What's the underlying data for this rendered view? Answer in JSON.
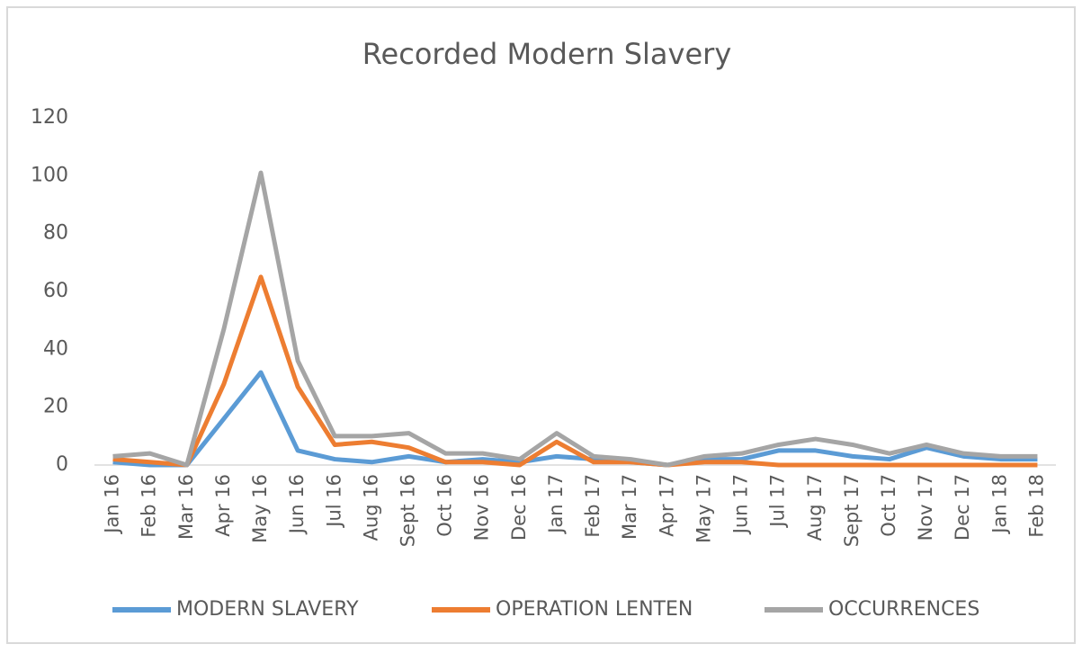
{
  "chart_data": {
    "type": "line",
    "title": "Recorded Modern Slavery",
    "categories": [
      "Jan 16",
      "Feb 16",
      "Mar 16",
      "Apr 16",
      "May 16",
      "Jun 16",
      "Jul 16",
      "Aug 16",
      "Sept 16",
      "Oct 16",
      "Nov 16",
      "Dec 16",
      "Jan 17",
      "Feb 17",
      "Mar 17",
      "Apr 17",
      "May 17",
      "Jun 17",
      "Jul 17",
      "Aug 17",
      "Sept 17",
      "Oct 17",
      "Nov 17",
      "Dec 17",
      "Jan 18",
      "Feb 18"
    ],
    "series": [
      {
        "name": "MODERN SLAVERY",
        "color": "#5b9bd5",
        "values": [
          1,
          0,
          0,
          16,
          32,
          5,
          2,
          1,
          3,
          1,
          2,
          1,
          3,
          2,
          1,
          0,
          2,
          2,
          5,
          5,
          3,
          2,
          6,
          3,
          2,
          2
        ]
      },
      {
        "name": "OPERATION LENTEN",
        "color": "#ed7d31",
        "values": [
          2,
          1,
          0,
          28,
          65,
          27,
          7,
          8,
          6,
          1,
          1,
          0,
          8,
          1,
          1,
          0,
          1,
          1,
          0,
          0,
          0,
          0,
          0,
          0,
          0,
          0
        ]
      },
      {
        "name": "OCCURRENCES",
        "color": "#a5a5a5",
        "values": [
          3,
          4,
          0,
          47,
          101,
          36,
          10,
          10,
          11,
          4,
          4,
          2,
          11,
          3,
          2,
          0,
          3,
          4,
          7,
          9,
          7,
          4,
          7,
          4,
          3,
          3
        ]
      }
    ],
    "ylim": [
      0,
      120
    ],
    "yticks": [
      0,
      20,
      40,
      60,
      80,
      100,
      120
    ],
    "grid": false,
    "legend": "bottom"
  }
}
